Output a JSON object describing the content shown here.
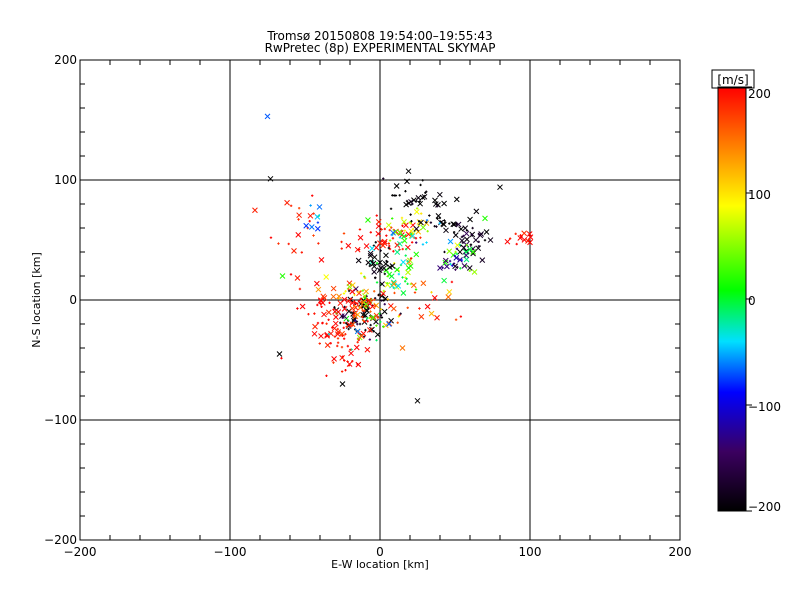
{
  "chart_data": {
    "type": "scatter",
    "title": "Tromsø 20150808 19:54:00–19:55:43",
    "subtitle": "RwPretec (8p) EXPERIMENTAL SKYMAP",
    "xlabel": "E-W location [km]",
    "ylabel": "N-S location [km]",
    "xlim": [
      -200,
      200
    ],
    "ylim": [
      -200,
      200
    ],
    "xticks": [
      "−200",
      "−100",
      "0",
      "100",
      "200"
    ],
    "yticks": [
      "−200",
      "−100",
      "0",
      "100",
      "200"
    ],
    "grid": true,
    "colorbar": {
      "label": "[m/s]",
      "range": [
        -200,
        200
      ],
      "ticks": [
        "200",
        "100",
        "0",
        "−100",
        "−200"
      ],
      "colormap": [
        "#000000",
        "#3b0060",
        "#0000ff",
        "#00e0ff",
        "#00ff00",
        "#ffff00",
        "#ff8000",
        "#ff0000"
      ]
    },
    "clusters": [
      {
        "x": -10,
        "y": -12,
        "sx": 9,
        "sy": 9,
        "n": 70,
        "v": -210,
        "dv": 30
      },
      {
        "x": -10,
        "y": -5,
        "sx": 8,
        "sy": 7,
        "n": 45,
        "v": 170,
        "dv": 30
      },
      {
        "x": -25,
        "y": -30,
        "sx": 12,
        "sy": 12,
        "n": 45,
        "v": 195,
        "dv": 10
      },
      {
        "x": -12,
        "y": -22,
        "sx": 10,
        "sy": 8,
        "n": 25,
        "v": 0,
        "dv": 80
      },
      {
        "x": 10,
        "y": 20,
        "sx": 10,
        "sy": 10,
        "n": 40,
        "v": 20,
        "dv": 40
      },
      {
        "x": 5,
        "y": 50,
        "sx": 12,
        "sy": 8,
        "n": 45,
        "v": 200,
        "dv": 15
      },
      {
        "x": 20,
        "y": 62,
        "sx": 8,
        "sy": 6,
        "n": 25,
        "v": 80,
        "dv": 30
      },
      {
        "x": 20,
        "y": 85,
        "sx": 15,
        "sy": 8,
        "n": 35,
        "v": -200,
        "dv": 10
      },
      {
        "x": 40,
        "y": 65,
        "sx": 10,
        "sy": 6,
        "n": 25,
        "v": -200,
        "dv": 10
      },
      {
        "x": 60,
        "y": 50,
        "sx": 8,
        "sy": 8,
        "n": 40,
        "v": -190,
        "dv": 20
      },
      {
        "x": 55,
        "y": 40,
        "sx": 6,
        "sy": 6,
        "n": 20,
        "v": 20,
        "dv": 30
      },
      {
        "x": 50,
        "y": 30,
        "sx": 8,
        "sy": 5,
        "n": 15,
        "v": -130,
        "dv": 20
      },
      {
        "x": -40,
        "y": -10,
        "sx": 8,
        "sy": 10,
        "n": 25,
        "v": 200,
        "dv": 10
      },
      {
        "x": -50,
        "y": 55,
        "sx": 15,
        "sy": 15,
        "n": 25,
        "v": 190,
        "dv": 15
      },
      {
        "x": 95,
        "y": 50,
        "sx": 5,
        "sy": 5,
        "n": 12,
        "v": 200,
        "dv": 10
      },
      {
        "x": 0,
        "y": 30,
        "sx": 6,
        "sy": 8,
        "n": 30,
        "v": -200,
        "dv": 10
      },
      {
        "x": -20,
        "y": 5,
        "sx": 10,
        "sy": 8,
        "n": 30,
        "v": 150,
        "dv": 60
      },
      {
        "x": 15,
        "y": 45,
        "sx": 10,
        "sy": 10,
        "n": 20,
        "v": -20,
        "dv": 40
      },
      {
        "x": -45,
        "y": 70,
        "sx": 8,
        "sy": 8,
        "n": 8,
        "v": -60,
        "dv": 40
      },
      {
        "x": -20,
        "y": -55,
        "sx": 6,
        "sy": 10,
        "n": 15,
        "v": 200,
        "dv": 10
      },
      {
        "x": 30,
        "y": 0,
        "sx": 15,
        "sy": 10,
        "n": 20,
        "v": 170,
        "dv": 30
      }
    ],
    "singles": [
      {
        "x": -75,
        "y": 153,
        "v": -70
      },
      {
        "x": -73,
        "y": 101,
        "v": -200
      },
      {
        "x": 80,
        "y": 94,
        "v": -200
      },
      {
        "x": -65,
        "y": 20,
        "v": 20
      },
      {
        "x": 25,
        "y": -84,
        "v": -200
      },
      {
        "x": -25,
        "y": -70,
        "v": -200
      },
      {
        "x": -67,
        "y": -45,
        "v": -200
      },
      {
        "x": 15,
        "y": -40,
        "v": 150
      },
      {
        "x": 70,
        "y": 68,
        "v": 20
      },
      {
        "x": 100,
        "y": 48,
        "v": 200
      }
    ]
  }
}
